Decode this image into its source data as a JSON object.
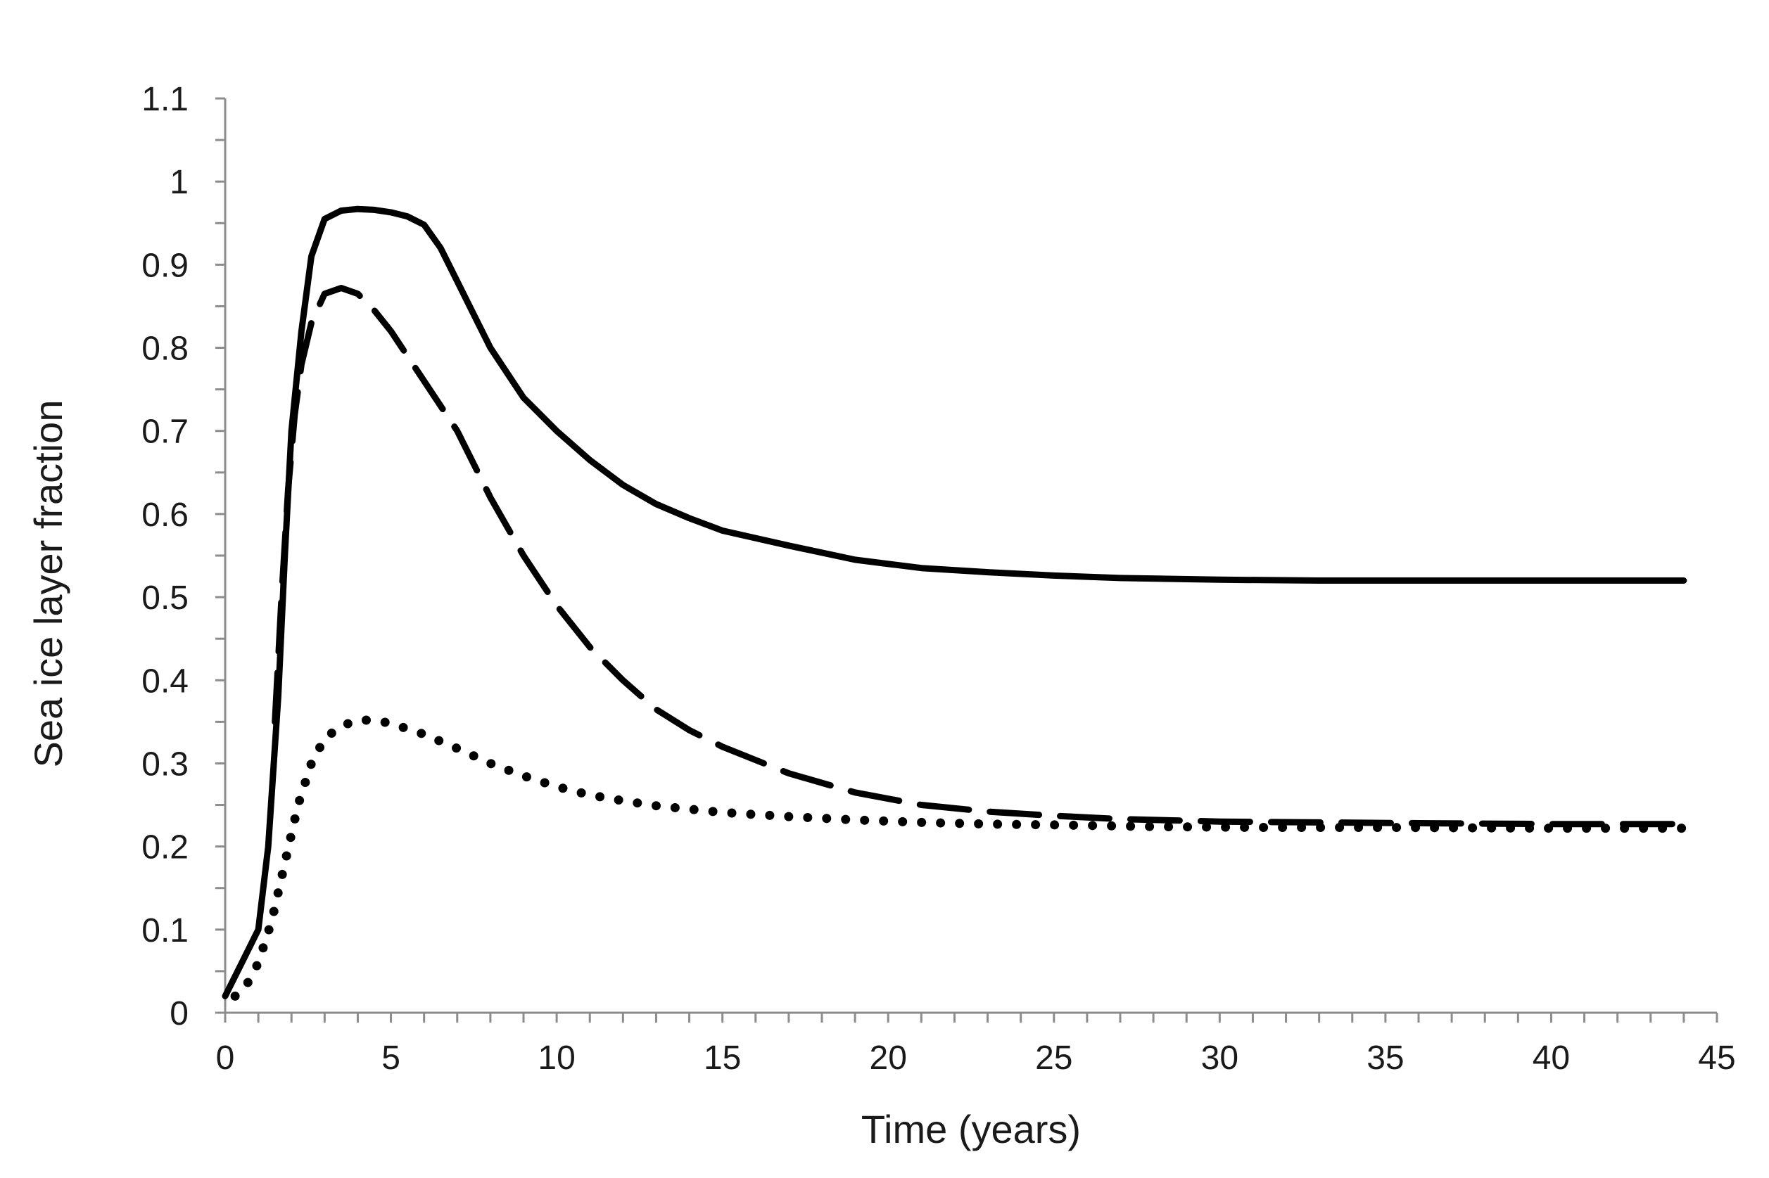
{
  "chart_data": {
    "type": "line",
    "title": "",
    "xlabel": "Time (years)",
    "ylabel": "Sea ice layer fraction",
    "xlim": [
      0,
      45
    ],
    "ylim": [
      0,
      1.1
    ],
    "x_ticks": [
      "0",
      "5",
      "10",
      "15",
      "20",
      "25",
      "30",
      "35",
      "40",
      "45"
    ],
    "y_ticks": [
      "0",
      "0.1",
      "0.2",
      "0.3",
      "0.4",
      "0.5",
      "0.6",
      "0.7",
      "0.8",
      "0.9",
      "1",
      "1.1"
    ],
    "x_tick_values": [
      0,
      5,
      10,
      15,
      20,
      25,
      30,
      35,
      40,
      45
    ],
    "y_tick_values": [
      0,
      0.1,
      0.2,
      0.3,
      0.4,
      0.5,
      0.6,
      0.7,
      0.8,
      0.9,
      1.0,
      1.1
    ],
    "x_minor_step": 1,
    "y_minor_step": 0.05,
    "grid": false,
    "legend": "none",
    "series": [
      {
        "name": "solid",
        "style": "solid",
        "color": "#000000",
        "x": [
          0,
          0.5,
          1,
          1.3,
          1.6,
          1.8,
          2,
          2.3,
          2.6,
          3,
          3.5,
          4,
          4.5,
          5,
          5.5,
          6,
          6.5,
          7,
          7.5,
          8,
          9,
          10,
          11,
          12,
          13,
          14,
          15,
          17,
          19,
          21,
          23,
          25,
          27,
          30,
          33,
          36,
          40,
          44
        ],
        "values": [
          0.02,
          0.06,
          0.1,
          0.2,
          0.38,
          0.55,
          0.7,
          0.82,
          0.91,
          0.955,
          0.965,
          0.967,
          0.966,
          0.963,
          0.958,
          0.948,
          0.92,
          0.88,
          0.84,
          0.8,
          0.74,
          0.7,
          0.665,
          0.635,
          0.612,
          0.595,
          0.58,
          0.562,
          0.545,
          0.535,
          0.53,
          0.526,
          0.523,
          0.521,
          0.52,
          0.52,
          0.52,
          0.52
        ]
      },
      {
        "name": "dashed",
        "style": "dashed",
        "color": "#000000",
        "x": [
          1.5,
          1.7,
          1.9,
          2.1,
          2.3,
          2.6,
          3,
          3.5,
          4,
          4.5,
          5,
          5.5,
          6,
          7,
          8,
          9,
          10,
          11,
          12,
          13,
          14,
          15,
          17,
          19,
          21,
          23,
          25,
          27,
          30,
          33,
          36,
          40,
          44
        ],
        "values": [
          0.35,
          0.5,
          0.63,
          0.72,
          0.78,
          0.83,
          0.865,
          0.872,
          0.865,
          0.845,
          0.82,
          0.79,
          0.76,
          0.7,
          0.62,
          0.55,
          0.49,
          0.44,
          0.4,
          0.365,
          0.34,
          0.32,
          0.288,
          0.265,
          0.25,
          0.242,
          0.237,
          0.233,
          0.23,
          0.229,
          0.228,
          0.227,
          0.227
        ]
      },
      {
        "name": "dotted",
        "style": "dotted",
        "color": "#000000",
        "x": [
          0.3,
          0.6,
          1,
          1.4,
          1.8,
          2.2,
          2.6,
          3,
          3.5,
          4,
          4.5,
          5,
          6,
          7,
          8,
          9,
          10,
          11,
          12,
          13,
          14,
          15,
          17,
          19,
          21,
          23,
          25,
          28,
          31,
          35,
          40,
          44
        ],
        "values": [
          0.02,
          0.03,
          0.06,
          0.11,
          0.18,
          0.25,
          0.3,
          0.33,
          0.345,
          0.352,
          0.352,
          0.348,
          0.335,
          0.318,
          0.3,
          0.285,
          0.272,
          0.262,
          0.255,
          0.249,
          0.245,
          0.241,
          0.236,
          0.232,
          0.229,
          0.227,
          0.226,
          0.224,
          0.223,
          0.223,
          0.222,
          0.222
        ]
      }
    ]
  }
}
